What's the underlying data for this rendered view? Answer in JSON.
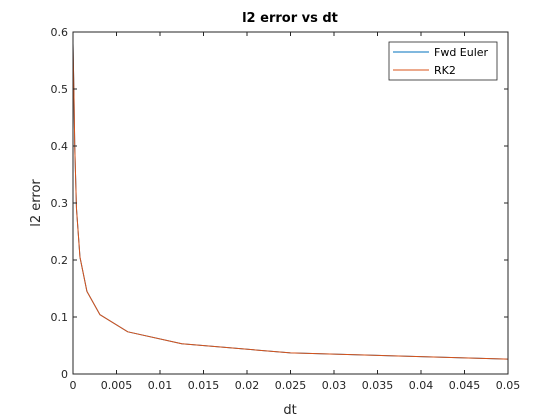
{
  "chart_data": {
    "type": "line",
    "title": "l2 error vs dt",
    "xlabel": "dt",
    "ylabel": "l2 error",
    "xlim": [
      0,
      0.05
    ],
    "ylim": [
      0,
      0.6
    ],
    "xticks": [
      0,
      0.005,
      0.01,
      0.015,
      0.02,
      0.025,
      0.03,
      0.035,
      0.04,
      0.045,
      0.05
    ],
    "xtick_labels": [
      "0",
      "0.005",
      "0.01",
      "0.015",
      "0.02",
      "0.025",
      "0.03",
      "0.035",
      "0.04",
      "0.045",
      "0.05"
    ],
    "yticks": [
      0,
      0.1,
      0.2,
      0.3,
      0.4,
      0.5,
      0.6
    ],
    "ytick_labels": [
      "0",
      "0.1",
      "0.2",
      "0.3",
      "0.4",
      "0.5",
      "0.6"
    ],
    "grid": false,
    "legend_position": "top-right",
    "x": [
      0.0,
      0.0001,
      0.0002,
      0.0004,
      0.0008,
      0.0016,
      0.0031,
      0.0063,
      0.0125,
      0.025,
      0.05
    ],
    "series": [
      {
        "name": "Fwd Euler",
        "color": "#0072BD",
        "values": [
          0.58,
          0.5,
          0.4,
          0.29,
          0.205,
          0.145,
          0.104,
          0.074,
          0.053,
          0.037,
          0.026
        ]
      },
      {
        "name": "RK2",
        "color": "#D95319",
        "values": [
          0.58,
          0.5,
          0.4,
          0.29,
          0.205,
          0.145,
          0.104,
          0.074,
          0.053,
          0.037,
          0.026
        ]
      }
    ]
  }
}
